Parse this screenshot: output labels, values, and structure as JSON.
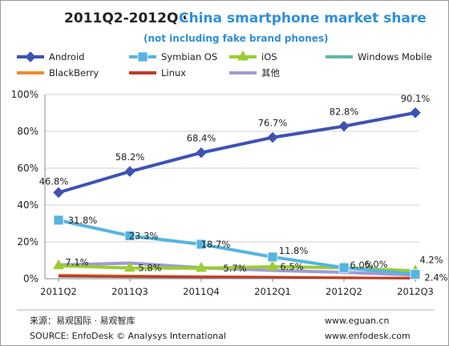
{
  "chart_data": {
    "type": "line",
    "title": "2011Q2-2012Q3",
    "overlay_title": "China smartphone market share",
    "subtitle": "(not including fake brand phones)",
    "categories": [
      "2011Q2",
      "2011Q3",
      "2011Q4",
      "2012Q1",
      "2012Q2",
      "2012Q3"
    ],
    "y_ticks": [
      "0%",
      "20%",
      "40%",
      "60%",
      "80%",
      "100%"
    ],
    "ylim": [
      0,
      100
    ],
    "unit": "%",
    "grid": true,
    "legend_position": "top",
    "series": [
      {
        "name": "Android",
        "color": "#3f51b5",
        "marker": "diamond",
        "values": [
          46.8,
          58.2,
          68.4,
          76.7,
          82.8,
          90.1
        ],
        "labels": [
          "46.8%",
          "58.2%",
          "68.4%",
          "76.7%",
          "82.8%",
          "90.1%"
        ]
      },
      {
        "name": "Symbian OS",
        "color": "#56b4e0",
        "marker": "square",
        "values": [
          31.8,
          23.3,
          18.7,
          11.8,
          6.0,
          2.4
        ],
        "labels": [
          "31.8%",
          "23.3%",
          "18.7%",
          "11.8%",
          "6.0%",
          "2.4%"
        ]
      },
      {
        "name": "iOS",
        "color": "#9acd32",
        "marker": "triangle",
        "values": [
          7.1,
          5.8,
          5.7,
          6.5,
          6.0,
          4.2
        ],
        "labels": [
          "7.1%",
          "5.8%",
          "5.7%",
          "6.5%",
          "6.0%",
          "4.2%"
        ]
      },
      {
        "name": "Windows Mobile",
        "color": "#5fb8a0",
        "marker": "none",
        "values": [
          1.2,
          1.0,
          0.8,
          0.6,
          0.4,
          0.3
        ],
        "labels": []
      },
      {
        "name": "BlackBerry",
        "color": "#f08c28",
        "marker": "none",
        "values": [
          2.0,
          1.6,
          1.2,
          0.9,
          0.6,
          0.3
        ],
        "labels": []
      },
      {
        "name": "Linux",
        "color": "#c0392b",
        "marker": "none",
        "values": [
          1.5,
          1.2,
          1.0,
          0.8,
          0.5,
          0.3
        ],
        "labels": []
      },
      {
        "name": "其他",
        "color": "#a09ad4",
        "marker": "none",
        "values": [
          7.5,
          8.5,
          6.0,
          4.5,
          3.5,
          2.0
        ],
        "labels": []
      }
    ]
  },
  "footer": {
    "source_cn": "来源：易观国际 · 易观智库",
    "source_en": "SOURCE: EnfoDesk © Analysys International",
    "site1": "www.eguan.cn",
    "site2": "www.enfodesk.com"
  }
}
